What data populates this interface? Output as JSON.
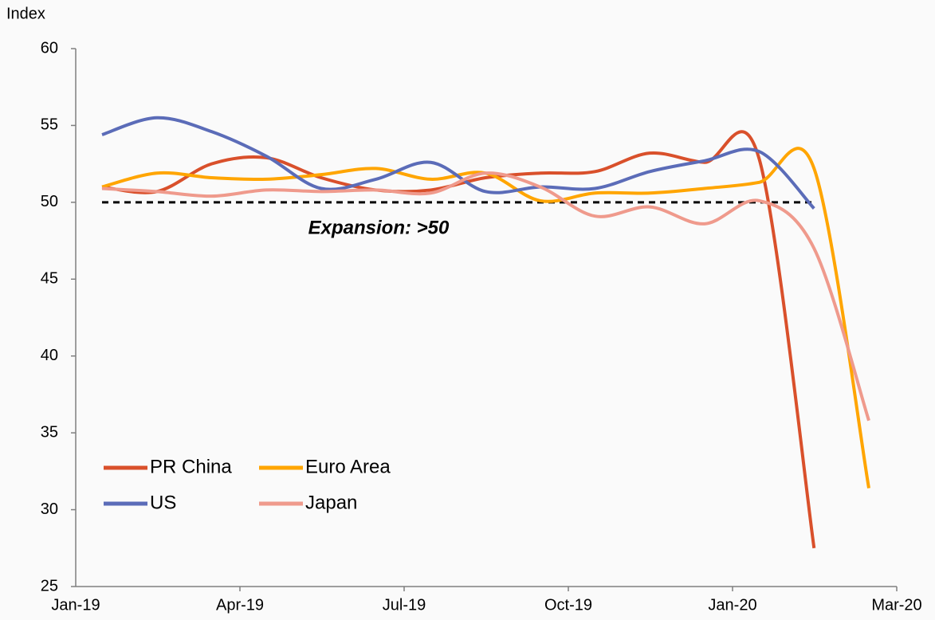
{
  "chart_data": {
    "type": "line",
    "y_label": "Index",
    "annotation": "Expansion: >50",
    "reference_line": 50,
    "xticks": [
      "Jan-19",
      "Apr-19",
      "Jul-19",
      "Oct-19",
      "Jan-20",
      "Mar-20"
    ],
    "ylim": [
      25,
      60
    ],
    "yticks": [
      25,
      30,
      35,
      40,
      45,
      50,
      55,
      60
    ],
    "legend": "lower left",
    "series": [
      {
        "name": "PR China",
        "color": "#d9502b",
        "values": [
          51.0,
          50.7,
          52.5,
          52.9,
          51.6,
          50.8,
          50.8,
          51.6,
          51.9,
          52.0,
          53.2,
          52.6,
          52.8,
          27.5,
          null
        ]
      },
      {
        "name": "Euro Area",
        "color": "#ffa500",
        "values": [
          51.0,
          51.9,
          51.6,
          51.5,
          51.8,
          52.2,
          51.5,
          51.9,
          50.1,
          50.6,
          50.6,
          50.9,
          51.3,
          52.2,
          31.4
        ]
      },
      {
        "name": "US",
        "color": "#5b6cb8",
        "values": [
          54.4,
          55.5,
          54.6,
          53.0,
          50.9,
          51.5,
          52.6,
          50.7,
          51.0,
          50.9,
          52.0,
          52.7,
          53.3,
          49.6,
          null
        ]
      },
      {
        "name": "Japan",
        "color": "#ef9a8c",
        "values": [
          50.9,
          50.7,
          50.4,
          50.8,
          50.7,
          50.8,
          50.6,
          51.9,
          51.0,
          49.1,
          49.7,
          48.6,
          50.1,
          47.0,
          35.8
        ]
      }
    ]
  }
}
